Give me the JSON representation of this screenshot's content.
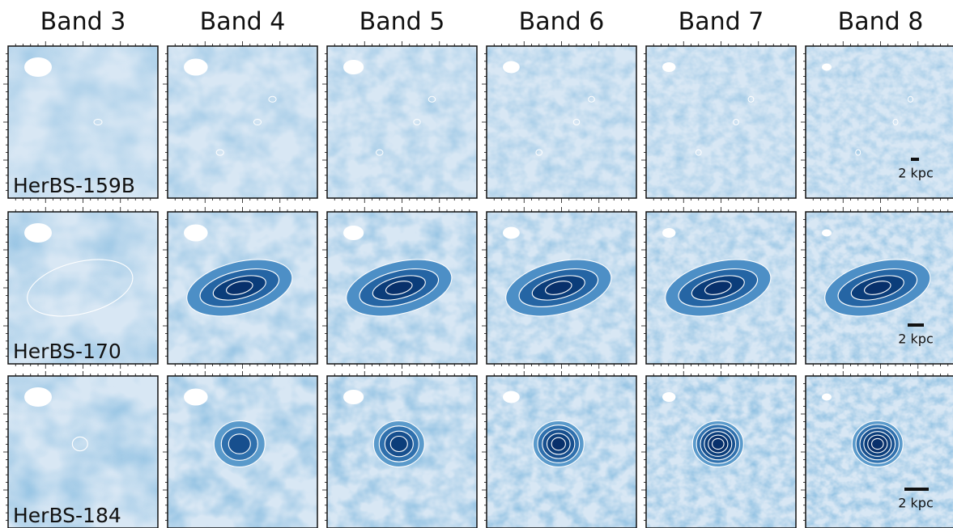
{
  "columns": [
    "Band 3",
    "Band 4",
    "Band 5",
    "Band 6",
    "Band 7",
    "Band 8"
  ],
  "rows": [
    {
      "label": "HerBS-159B",
      "scale_bar": "2 kpc"
    },
    {
      "label": "HerBS-170",
      "scale_bar": "2 kpc"
    },
    {
      "label": "HerBS-184",
      "scale_bar": "2 kpc"
    }
  ]
}
